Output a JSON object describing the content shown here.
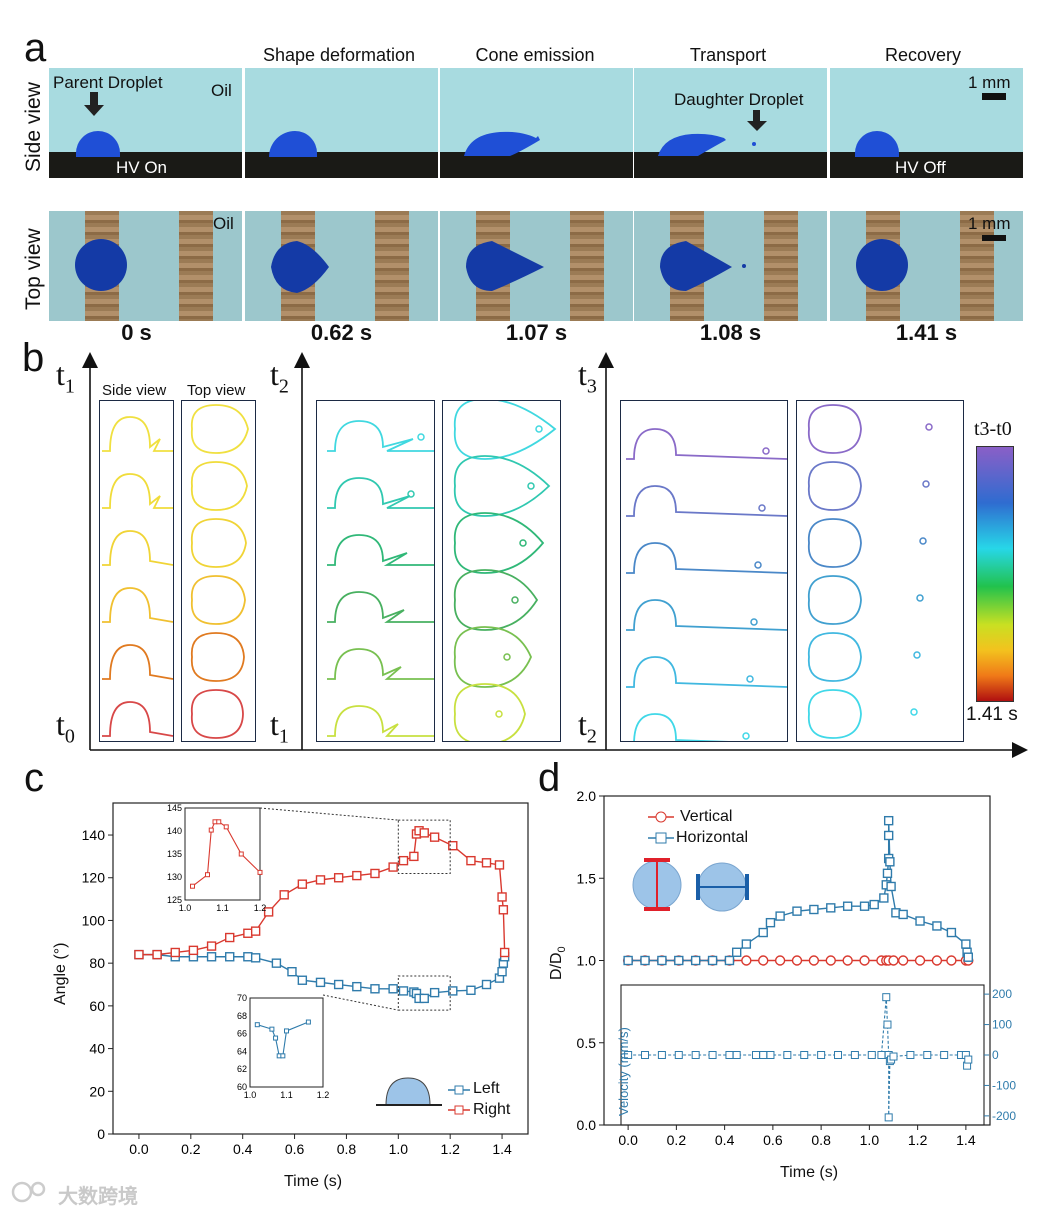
{
  "panel_a": {
    "label": "a",
    "stages": [
      "Shape deformation",
      "Cone emission",
      "Transport",
      "Recovery"
    ],
    "side_view_label": "Side view",
    "top_view_label": "Top view",
    "parent_droplet": "Parent Droplet",
    "daughter_droplet": "Daughter Droplet",
    "oil": "Oil",
    "hv_on": "HV On",
    "hv_off": "HV Off",
    "scale": "1 mm",
    "times": [
      "0 s",
      "0.62 s",
      "1.07 s",
      "1.08 s",
      "1.41 s"
    ],
    "colors": {
      "oil": "#a8dbe0",
      "droplet": "#1f4fd6",
      "electrode": "#9b7b55"
    }
  },
  "panel_b": {
    "label": "b",
    "side_view_label": "Side view",
    "top_view_label": "Top view",
    "t_labels": {
      "t0": "t",
      "t0_sub": "0",
      "t1": "t",
      "t1_sub": "1",
      "t2": "t",
      "t2_sub": "2",
      "t3": "t",
      "t3_sub": "3"
    },
    "colorbar_title": "t3-t0",
    "colorbar_max": "1.41 s"
  },
  "chart_data": [
    {
      "type": "line",
      "panel": "c",
      "label": "c",
      "xlabel": "Time (s)",
      "ylabel": "Angle (°)",
      "xlim": [
        -0.1,
        1.5
      ],
      "ylim": [
        0,
        155
      ],
      "xticks": [
        "0.0",
        "0.2",
        "0.4",
        "0.6",
        "0.8",
        "1.0",
        "1.2",
        "1.4"
      ],
      "yticks": [
        "0",
        "20",
        "40",
        "60",
        "80",
        "100",
        "120",
        "140"
      ],
      "series": [
        {
          "name": "Left",
          "color": "#2f7bab",
          "x": [
            0,
            0.07,
            0.14,
            0.21,
            0.28,
            0.35,
            0.42,
            0.45,
            0.53,
            0.59,
            0.63,
            0.7,
            0.77,
            0.84,
            0.91,
            0.98,
            1.02,
            1.06,
            1.07,
            1.08,
            1.1,
            1.14,
            1.21,
            1.28,
            1.34,
            1.39,
            1.4,
            1.405,
            1.41
          ],
          "y": [
            84,
            84,
            83,
            83,
            83,
            83,
            83,
            82.5,
            80,
            76,
            72,
            71,
            70,
            69,
            68,
            68,
            67,
            66.5,
            65.8,
            63.5,
            63.5,
            66.2,
            67,
            67.3,
            70,
            73,
            76,
            80,
            83
          ]
        },
        {
          "name": "Right",
          "color": "#d9392f",
          "x": [
            0,
            0.07,
            0.14,
            0.21,
            0.28,
            0.35,
            0.42,
            0.45,
            0.5,
            0.56,
            0.63,
            0.7,
            0.77,
            0.84,
            0.91,
            0.98,
            1.02,
            1.06,
            1.07,
            1.08,
            1.1,
            1.14,
            1.21,
            1.28,
            1.34,
            1.39,
            1.4,
            1.405,
            1.41
          ],
          "y": [
            84,
            84,
            85,
            86,
            88,
            92,
            94,
            95,
            104,
            112,
            117,
            119,
            120,
            121,
            122,
            125,
            128,
            130,
            140.5,
            142,
            141,
            139,
            135,
            128,
            127,
            126,
            111,
            105,
            85
          ]
        }
      ],
      "inset_right": {
        "xlim": [
          1.0,
          1.2
        ],
        "ylim": [
          125,
          145
        ],
        "xticks": [
          "1.0",
          "1.1",
          "1.2"
        ],
        "yticks": [
          "125",
          "130",
          "135",
          "140",
          "145"
        ],
        "x": [
          1.02,
          1.06,
          1.07,
          1.08,
          1.09,
          1.11,
          1.15,
          1.2
        ],
        "y": [
          128,
          130.5,
          140.2,
          142,
          142,
          140.9,
          135,
          131
        ]
      },
      "inset_left": {
        "xlim": [
          1.0,
          1.2
        ],
        "ylim": [
          60,
          70
        ],
        "xticks": [
          "1.0",
          "1.1",
          "1.2"
        ],
        "yticks": [
          "60",
          "62",
          "64",
          "66",
          "68",
          "70"
        ],
        "x": [
          1.02,
          1.06,
          1.07,
          1.08,
          1.09,
          1.1,
          1.16
        ],
        "y": [
          67,
          66.5,
          65.5,
          63.5,
          63.5,
          66.3,
          67.3
        ]
      }
    },
    {
      "type": "line",
      "panel": "d",
      "label": "d",
      "xlabel": "Time (s)",
      "ylabel": "D/D0",
      "ylabel_main": "D/D",
      "ylabel_sub": "0",
      "xlim": [
        -0.1,
        1.5
      ],
      "ylim": [
        0,
        2.0
      ],
      "xticks": [
        "0.0",
        "0.2",
        "0.4",
        "0.6",
        "0.8",
        "1.0",
        "1.2",
        "1.4"
      ],
      "yticks": [
        "0.0",
        "0.5",
        "1.0",
        "1.5",
        "2.0"
      ],
      "series": [
        {
          "name": "Vertical",
          "color": "#d9392f",
          "x": [
            0,
            0.07,
            0.14,
            0.21,
            0.28,
            0.35,
            0.42,
            0.49,
            0.56,
            0.63,
            0.7,
            0.77,
            0.84,
            0.91,
            0.98,
            1.05,
            1.07,
            1.08,
            1.1,
            1.14,
            1.21,
            1.28,
            1.34,
            1.4,
            1.41
          ],
          "y": [
            1,
            1,
            1,
            1,
            1,
            1,
            1,
            1,
            1,
            1,
            1,
            1,
            1,
            1,
            1,
            1,
            1,
            1,
            1,
            1,
            1,
            1,
            1,
            1,
            1
          ]
        },
        {
          "name": "Horizontal",
          "color": "#2f7bab",
          "x": [
            0,
            0.07,
            0.14,
            0.21,
            0.28,
            0.35,
            0.42,
            0.45,
            0.49,
            0.56,
            0.59,
            0.63,
            0.7,
            0.77,
            0.84,
            0.91,
            0.98,
            1.02,
            1.06,
            1.07,
            1.075,
            1.08,
            1.08,
            1.08,
            1.085,
            1.09,
            1.11,
            1.14,
            1.21,
            1.28,
            1.34,
            1.4,
            1.405,
            1.41
          ],
          "y": [
            1,
            1,
            1,
            1,
            1,
            1,
            1,
            1.05,
            1.1,
            1.17,
            1.23,
            1.27,
            1.3,
            1.31,
            1.32,
            1.33,
            1.33,
            1.34,
            1.38,
            1.46,
            1.53,
            1.62,
            1.76,
            1.85,
            1.6,
            1.45,
            1.29,
            1.28,
            1.24,
            1.21,
            1.17,
            1.1,
            1.05,
            1.02
          ]
        }
      ],
      "velocity_inset": {
        "ylabel": "Velocity (mm/s)",
        "ylim": [
          -230,
          230
        ],
        "yticks": [
          "200",
          "100",
          "0",
          "-100",
          "-200"
        ],
        "x": [
          0,
          0.07,
          0.14,
          0.21,
          0.28,
          0.35,
          0.42,
          0.45,
          0.53,
          0.56,
          0.59,
          0.66,
          0.73,
          0.8,
          0.87,
          0.94,
          1.01,
          1.05,
          1.07,
          1.075,
          1.08,
          1.08,
          1.085,
          1.09,
          1.1,
          1.17,
          1.24,
          1.31,
          1.38,
          1.4,
          1.405,
          1.41
        ],
        "y": [
          0,
          0,
          0,
          0,
          0,
          0,
          0,
          0,
          0,
          0,
          0,
          0,
          0,
          0,
          0,
          0,
          0,
          0,
          190,
          100,
          0,
          -205,
          -20,
          -15,
          -5,
          0,
          0,
          0,
          0,
          0,
          -35,
          -15
        ]
      }
    }
  ],
  "watermark": "大数跨境"
}
